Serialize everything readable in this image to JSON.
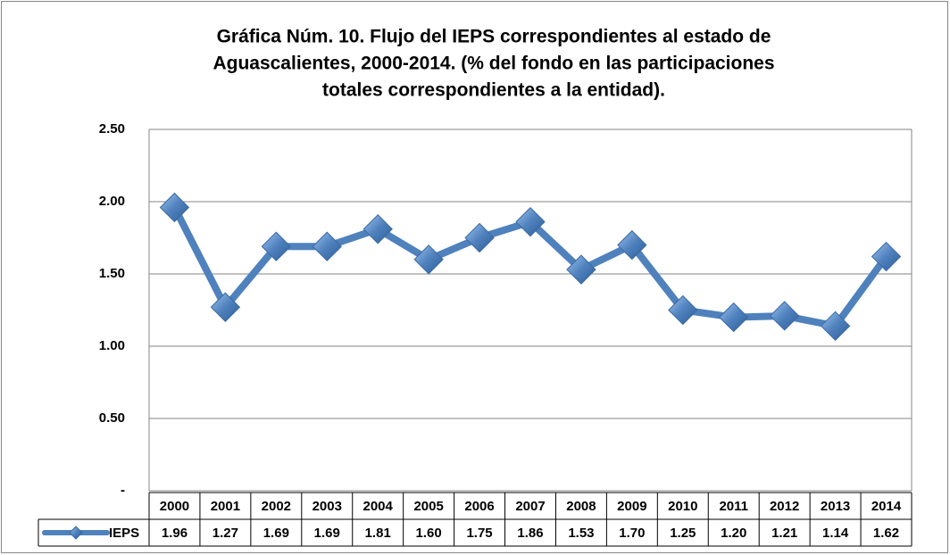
{
  "chart_data": {
    "type": "line",
    "title": [
      "Gráfica Núm. 10. Flujo del IEPS correspondientes al estado de",
      "Aguascalientes, 2000-2014. (% del fondo en las participaciones",
      "totales correspondientes a la entidad)."
    ],
    "categories": [
      "2000",
      "2001",
      "2002",
      "2003",
      "2004",
      "2005",
      "2006",
      "2007",
      "2008",
      "2009",
      "2010",
      "2011",
      "2012",
      "2013",
      "2014"
    ],
    "series": [
      {
        "name": "IEPS",
        "color": "#4f81bd",
        "values": [
          1.96,
          1.27,
          1.69,
          1.69,
          1.81,
          1.6,
          1.75,
          1.86,
          1.53,
          1.7,
          1.25,
          1.2,
          1.21,
          1.14,
          1.62
        ],
        "value_labels": [
          "1.96",
          "1.27",
          "1.69",
          "1.69",
          "1.81",
          "1.60",
          "1.75",
          "1.86",
          "1.53",
          "1.70",
          "1.25",
          "1.20",
          "1.21",
          "1.14",
          "1.62"
        ]
      }
    ],
    "ylim": [
      0,
      2.5
    ],
    "yticks": [
      {
        "value": 0,
        "label": "-"
      },
      {
        "value": 0.5,
        "label": "0.50"
      },
      {
        "value": 1,
        "label": "1.00"
      },
      {
        "value": 1.5,
        "label": "1.50"
      },
      {
        "value": 2,
        "label": "2.00"
      },
      {
        "value": 2.5,
        "label": "2.50"
      }
    ],
    "grid": true
  }
}
